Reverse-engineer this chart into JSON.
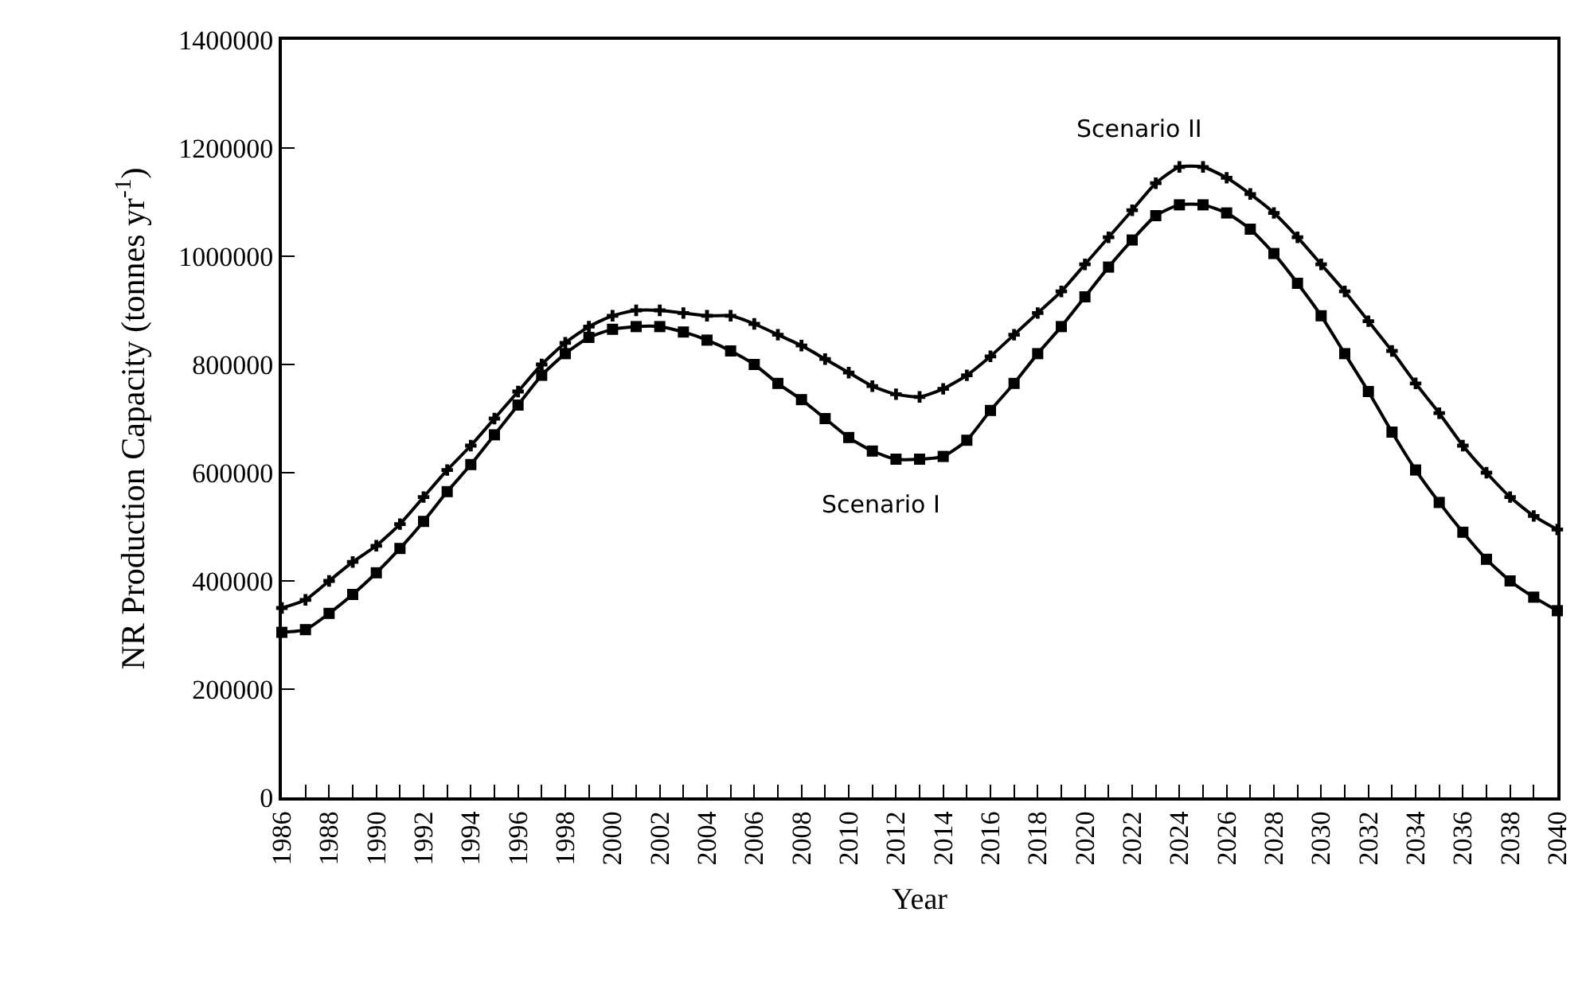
{
  "chart_data": {
    "type": "line",
    "xlabel": "Year",
    "ylabel": "NR Production Capacity (tonnes yr$^{-1}$)",
    "x": [
      1986,
      1987,
      1988,
      1989,
      1990,
      1991,
      1992,
      1993,
      1994,
      1995,
      1996,
      1997,
      1998,
      1999,
      2000,
      2001,
      2002,
      2003,
      2004,
      2005,
      2006,
      2007,
      2008,
      2009,
      2010,
      2011,
      2012,
      2013,
      2014,
      2015,
      2016,
      2017,
      2018,
      2019,
      2020,
      2021,
      2022,
      2023,
      2024,
      2025,
      2026,
      2027,
      2028,
      2029,
      2030,
      2031,
      2032,
      2033,
      2034,
      2035,
      2036,
      2037,
      2038,
      2039,
      2040
    ],
    "series": [
      {
        "name": "Scenario I",
        "color": "#000000",
        "marker": "square",
        "values": [
          305000,
          310000,
          340000,
          375000,
          415000,
          460000,
          510000,
          565000,
          615000,
          670000,
          725000,
          780000,
          820000,
          850000,
          865000,
          870000,
          870000,
          860000,
          845000,
          825000,
          800000,
          765000,
          735000,
          700000,
          665000,
          640000,
          625000,
          625000,
          630000,
          660000,
          715000,
          765000,
          820000,
          870000,
          925000,
          980000,
          1030000,
          1075000,
          1095000,
          1095000,
          1080000,
          1050000,
          1005000,
          950000,
          890000,
          820000,
          750000,
          675000,
          605000,
          545000,
          490000,
          440000,
          400000,
          370000,
          345000
        ]
      },
      {
        "name": "Scenario II",
        "color": "#000000",
        "marker": "cross",
        "values": [
          350000,
          365000,
          400000,
          435000,
          465000,
          505000,
          555000,
          605000,
          650000,
          700000,
          750000,
          800000,
          840000,
          870000,
          890000,
          900000,
          900000,
          895000,
          890000,
          890000,
          875000,
          855000,
          835000,
          810000,
          785000,
          760000,
          745000,
          740000,
          755000,
          780000,
          815000,
          855000,
          895000,
          935000,
          985000,
          1035000,
          1085000,
          1135000,
          1165000,
          1165000,
          1145000,
          1115000,
          1080000,
          1035000,
          985000,
          935000,
          880000,
          825000,
          765000,
          710000,
          650000,
          600000,
          555000,
          520000,
          495000
        ]
      }
    ],
    "xlim": [
      1986,
      2040
    ],
    "xticks": [
      1986,
      {
        "value": 1987,
        "label": null
      },
      1988,
      {
        "value": 1989,
        "label": null
      },
      1990,
      {
        "value": 1991,
        "label": null
      },
      1992,
      {
        "value": 1993,
        "label": null
      },
      1994,
      {
        "value": 1995,
        "label": null
      },
      1996,
      {
        "value": 1997,
        "label": null
      },
      1998,
      {
        "value": 1999,
        "label": null
      },
      2000,
      {
        "value": 2001,
        "label": null
      },
      2002,
      {
        "value": 2003,
        "label": null
      },
      2004,
      {
        "value": 2005,
        "label": null
      },
      2006,
      {
        "value": 2007,
        "label": null
      },
      2008,
      {
        "value": 2009,
        "label": null
      },
      2010,
      {
        "value": 2011,
        "label": null
      },
      2012,
      {
        "value": 2013,
        "label": null
      },
      2014,
      {
        "value": 2015,
        "label": null
      },
      2016,
      {
        "value": 2017,
        "label": null
      },
      2018,
      {
        "value": 2019,
        "label": null
      },
      2020,
      {
        "value": 2021,
        "label": null
      },
      2022,
      {
        "value": 2023,
        "label": null
      },
      2024,
      {
        "value": 2025,
        "label": null
      },
      2026,
      {
        "value": 2027,
        "label": null
      },
      2028,
      {
        "value": 2029,
        "label": null
      },
      2030,
      {
        "value": 2031,
        "label": null
      },
      2032,
      {
        "value": 2033,
        "label": null
      },
      2034,
      {
        "value": 2035,
        "label": null
      },
      2036,
      {
        "value": 2037,
        "label": null
      },
      2038,
      {
        "value": 2039,
        "label": null
      },
      2040
    ],
    "ylim": [
      0,
      1400000
    ],
    "yticks": [
      0,
      200000,
      400000,
      600000,
      800000,
      1000000,
      1200000,
      1400000
    ],
    "legend": false,
    "line_style": "solid"
  }
}
